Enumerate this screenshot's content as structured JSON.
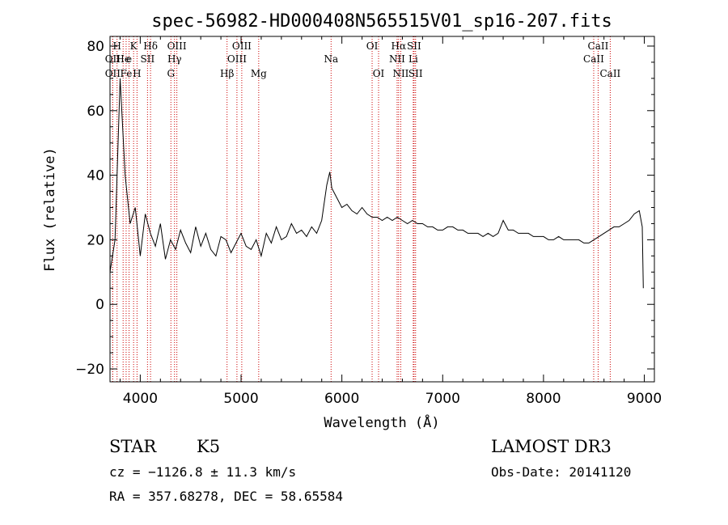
{
  "chart_data": {
    "type": "line",
    "title": "spec-56982-HD000408N565515V01_sp16-207.fits",
    "xlabel": "Wavelength (Å)",
    "ylabel": "Flux (relative)",
    "xlim": [
      3700,
      9100
    ],
    "ylim": [
      -24,
      83
    ],
    "xticks": [
      4000,
      5000,
      6000,
      7000,
      8000,
      9000
    ],
    "yticks": [
      -20,
      0,
      20,
      40,
      60,
      80
    ],
    "grid": false,
    "legend": "none",
    "line_color": "#000000",
    "marker_color": "#cc0000",
    "series": [
      {
        "x": [
          3700,
          3750,
          3800,
          3850,
          3900,
          3950,
          4000,
          4050,
          4100,
          4150,
          4200,
          4250,
          4300,
          4350,
          4400,
          4450,
          4500,
          4550,
          4600,
          4650,
          4700,
          4750,
          4800,
          4850,
          4900,
          4950,
          5000,
          5050,
          5100,
          5150,
          5200,
          5250,
          5300,
          5350,
          5400,
          5450,
          5500,
          5550,
          5600,
          5650,
          5700,
          5750,
          5800,
          5850,
          5880,
          5900,
          5950,
          6000,
          6050,
          6100,
          6150,
          6200,
          6250,
          6300,
          6350,
          6400,
          6450,
          6500,
          6550,
          6600,
          6650,
          6700,
          6750,
          6800,
          6850,
          6900,
          6950,
          7000,
          7050,
          7100,
          7150,
          7200,
          7250,
          7300,
          7350,
          7400,
          7450,
          7500,
          7550,
          7600,
          7650,
          7700,
          7750,
          7800,
          7850,
          7900,
          7950,
          8000,
          8050,
          8100,
          8150,
          8200,
          8250,
          8300,
          8350,
          8400,
          8450,
          8500,
          8550,
          8600,
          8650,
          8700,
          8750,
          8800,
          8850,
          8900,
          8950,
          8980,
          8990
        ],
        "y": [
          10,
          20,
          70,
          40,
          25,
          30,
          15,
          28,
          22,
          18,
          25,
          14,
          20,
          17,
          23,
          19,
          16,
          24,
          18,
          22,
          17,
          15,
          21,
          20,
          16,
          19,
          22,
          18,
          17,
          20,
          15,
          22,
          19,
          24,
          20,
          21,
          25,
          22,
          23,
          21,
          24,
          22,
          26,
          37,
          41,
          36,
          33,
          30,
          31,
          29,
          28,
          30,
          28,
          27,
          27,
          26,
          27,
          26,
          27,
          26,
          25,
          26,
          25,
          25,
          24,
          24,
          23,
          23,
          24,
          24,
          23,
          23,
          22,
          22,
          22,
          21,
          22,
          21,
          22,
          26,
          23,
          23,
          22,
          22,
          22,
          21,
          21,
          21,
          20,
          20,
          21,
          20,
          20,
          20,
          20,
          19,
          19,
          20,
          21,
          22,
          23,
          24,
          24,
          25,
          26,
          28,
          29,
          24,
          5
        ]
      }
    ],
    "annotations": [
      {
        "label": "H",
        "x": 3770,
        "row": 1
      },
      {
        "label": "OII",
        "x": 3727,
        "row": 2
      },
      {
        "label": "OII",
        "x": 3727,
        "row": 3
      },
      {
        "label": "He",
        "x": 3830,
        "row": 2
      },
      {
        "label": "Fe",
        "x": 3860,
        "row": 3
      },
      {
        "label": "K",
        "x": 3934,
        "row": 1
      },
      {
        "label": "e",
        "x": 3889,
        "row": 2
      },
      {
        "label": "H",
        "x": 3968,
        "row": 3
      },
      {
        "label": "Hδ",
        "x": 4102,
        "row": 1
      },
      {
        "label": "SII",
        "x": 4072,
        "row": 2
      },
      {
        "label": "OIII",
        "x": 4363,
        "row": 1
      },
      {
        "label": "Hγ",
        "x": 4340,
        "row": 2
      },
      {
        "label": "G",
        "x": 4304,
        "row": 3
      },
      {
        "label": "OIII",
        "x": 5007,
        "row": 1
      },
      {
        "label": "OIII",
        "x": 4959,
        "row": 2
      },
      {
        "label": "Hβ",
        "x": 4861,
        "row": 3
      },
      {
        "label": "Mg",
        "x": 5175,
        "row": 3
      },
      {
        "label": "Na",
        "x": 5893,
        "row": 2
      },
      {
        "label": "OI",
        "x": 6300,
        "row": 1
      },
      {
        "label": "OI",
        "x": 6364,
        "row": 3
      },
      {
        "label": "Hα",
        "x": 6563,
        "row": 1
      },
      {
        "label": "SII",
        "x": 6716,
        "row": 1
      },
      {
        "label": "NII",
        "x": 6548,
        "row": 2
      },
      {
        "label": "Li",
        "x": 6708,
        "row": 2
      },
      {
        "label": "NII",
        "x": 6584,
        "row": 3
      },
      {
        "label": "SII",
        "x": 6731,
        "row": 3
      },
      {
        "label": "CaII",
        "x": 8542,
        "row": 1
      },
      {
        "label": "CaII",
        "x": 8498,
        "row": 2
      },
      {
        "label": "CaII",
        "x": 8662,
        "row": 3
      }
    ]
  },
  "info": {
    "class": "STAR",
    "subclass": "K5",
    "survey": "LAMOST DR3",
    "cz": "cz = −1126.8 ± 11.3 km/s",
    "obs_date": "Obs-Date: 20141120",
    "coords": "RA = 357.68278, DEC =  58.65584"
  }
}
